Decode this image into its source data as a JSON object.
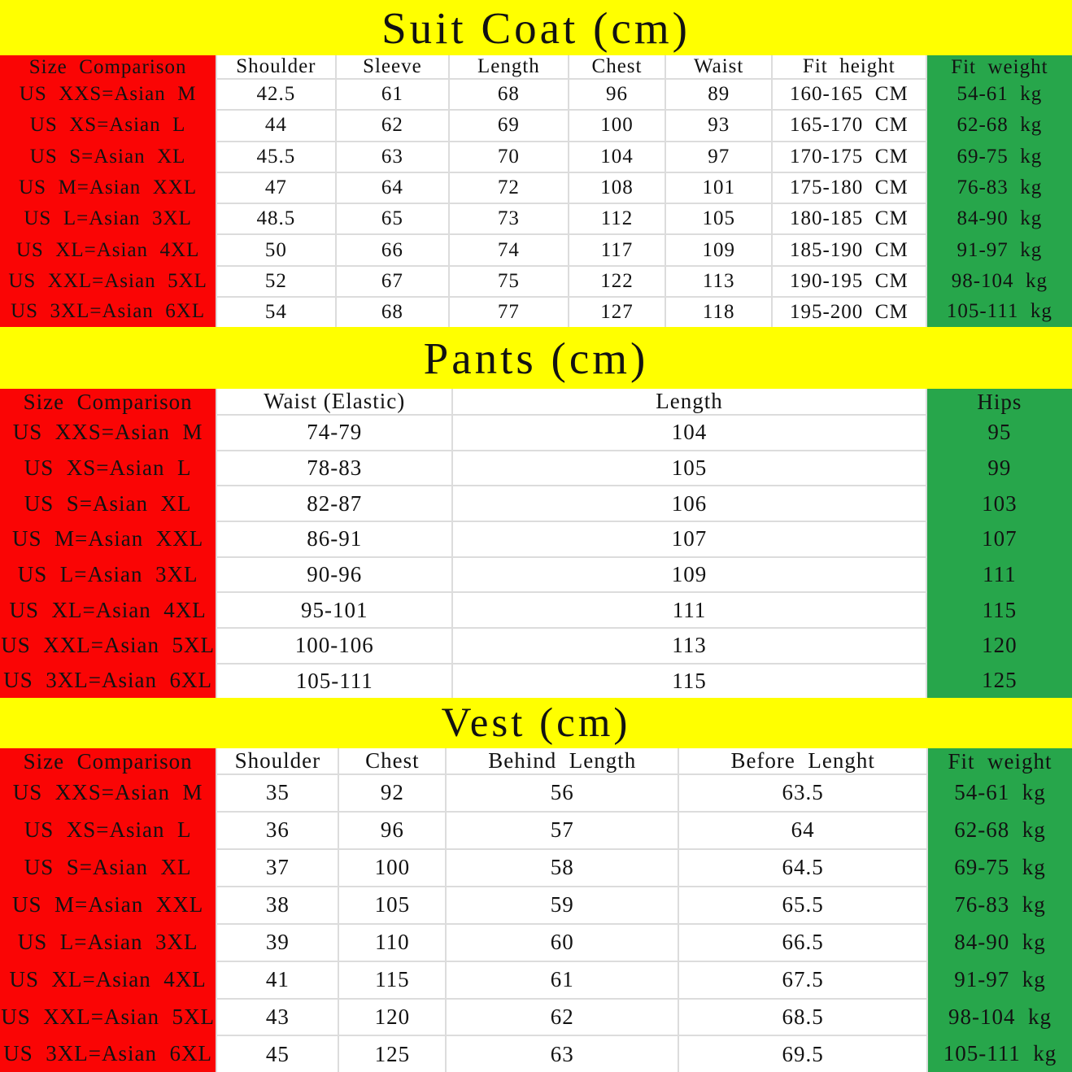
{
  "colors": {
    "band_yellow": "#FFFF00",
    "size_column_red": "#FA0505",
    "right_column_green": "#27A64B",
    "grid_line": "#DCDCDC",
    "text": "#121212"
  },
  "sections": [
    {
      "id": "suit-coat",
      "title": "Suit Coat (cm)",
      "columns": [
        {
          "label": "Size  Comparison"
        },
        {
          "label": "Shoulder"
        },
        {
          "label": "Sleeve"
        },
        {
          "label": "Length"
        },
        {
          "label": "Chest"
        },
        {
          "label": "Waist"
        },
        {
          "label": "Fit  height"
        },
        {
          "label": "Fit  weight"
        }
      ],
      "rows": [
        [
          "US  XXS=Asian  M",
          "42.5",
          "61",
          "68",
          "96",
          "89",
          "160-165  CM",
          "54-61  kg"
        ],
        [
          "US  XS=Asian  L",
          "44",
          "62",
          "69",
          "100",
          "93",
          "165-170  CM",
          "62-68  kg"
        ],
        [
          "US  S=Asian  XL",
          "45.5",
          "63",
          "70",
          "104",
          "97",
          "170-175  CM",
          "69-75  kg"
        ],
        [
          "US  M=Asian  XXL",
          "47",
          "64",
          "72",
          "108",
          "101",
          "175-180  CM",
          "76-83  kg"
        ],
        [
          "US  L=Asian  3XL",
          "48.5",
          "65",
          "73",
          "112",
          "105",
          "180-185  CM",
          "84-90  kg"
        ],
        [
          "US  XL=Asian  4XL",
          "50",
          "66",
          "74",
          "117",
          "109",
          "185-190  CM",
          "91-97  kg"
        ],
        [
          "US  XXL=Asian  5XL",
          "52",
          "67",
          "75",
          "122",
          "113",
          "190-195  CM",
          "98-104  kg"
        ],
        [
          "US  3XL=Asian  6XL",
          "54",
          "68",
          "77",
          "127",
          "118",
          "195-200  CM",
          "105-111  kg"
        ]
      ]
    },
    {
      "id": "pants",
      "title": "Pants (cm)",
      "columns": [
        {
          "label": "Size  Comparison"
        },
        {
          "label": "Waist (Elastic)"
        },
        {
          "label": "Length"
        },
        {
          "label": "Hips"
        }
      ],
      "rows": [
        [
          "US  XXS=Asian  M",
          "74-79",
          "104",
          "95"
        ],
        [
          "US  XS=Asian  L",
          "78-83",
          "105",
          "99"
        ],
        [
          "US  S=Asian  XL",
          "82-87",
          "106",
          "103"
        ],
        [
          "US  M=Asian  XXL",
          "86-91",
          "107",
          "107"
        ],
        [
          "US  L=Asian  3XL",
          "90-96",
          "109",
          "111"
        ],
        [
          "US  XL=Asian  4XL",
          "95-101",
          "111",
          "115"
        ],
        [
          "US  XXL=Asian  5XL",
          "100-106",
          "113",
          "120"
        ],
        [
          "US  3XL=Asian  6XL",
          "105-111",
          "115",
          "125"
        ]
      ]
    },
    {
      "id": "vest",
      "title": "Vest (cm)",
      "columns": [
        {
          "label": "Size  Comparison"
        },
        {
          "label": "Shoulder"
        },
        {
          "label": "Chest"
        },
        {
          "label": "Behind  Length"
        },
        {
          "label": "Before  Lenght"
        },
        {
          "label": "Fit  weight"
        }
      ],
      "rows": [
        [
          "US  XXS=Asian  M",
          "35",
          "92",
          "56",
          "63.5",
          "54-61  kg"
        ],
        [
          "US  XS=Asian  L",
          "36",
          "96",
          "57",
          "64",
          "62-68  kg"
        ],
        [
          "US  S=Asian  XL",
          "37",
          "100",
          "58",
          "64.5",
          "69-75  kg"
        ],
        [
          "US  M=Asian  XXL",
          "38",
          "105",
          "59",
          "65.5",
          "76-83  kg"
        ],
        [
          "US  L=Asian  3XL",
          "39",
          "110",
          "60",
          "66.5",
          "84-90  kg"
        ],
        [
          "US  XL=Asian  4XL",
          "41",
          "115",
          "61",
          "67.5",
          "91-97  kg"
        ],
        [
          "US  XXL=Asian  5XL",
          "43",
          "120",
          "62",
          "68.5",
          "98-104  kg"
        ],
        [
          "US  3XL=Asian  6XL",
          "45",
          "125",
          "63",
          "69.5",
          "105-111  kg"
        ]
      ]
    }
  ]
}
